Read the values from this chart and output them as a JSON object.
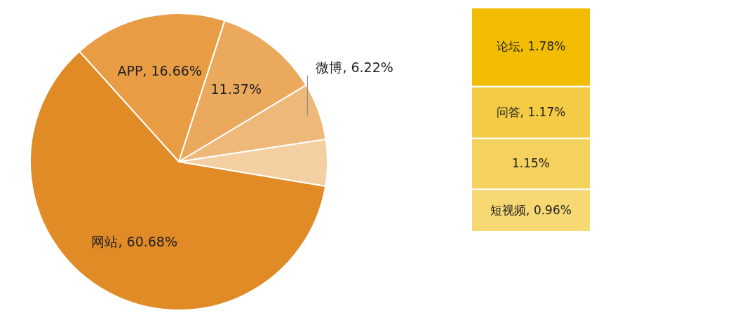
{
  "chart_data": [
    {
      "type": "pie",
      "categories": [
        "APP",
        null,
        "微博",
        null,
        "网站"
      ],
      "values": [
        16.66,
        11.37,
        6.22,
        5.06,
        60.68
      ],
      "colors": [
        "#e89c44",
        "#eaa95c",
        "#edb878",
        "#f3cfa2",
        "#e08b26"
      ],
      "value_labels": [
        "16.66%",
        "11.37%",
        "6.22%",
        null,
        "60.68%"
      ]
    },
    {
      "type": "bar",
      "stacked": true,
      "data_labels": true,
      "categories": [
        null
      ],
      "series": [
        {
          "name": "短视频,",
          "color": "#f7d873",
          "values": [
            0.96
          ],
          "value_labels": [
            "0.96%"
          ]
        },
        {
          "name": null,
          "color": "#f5d25e",
          "values": [
            1.15
          ],
          "value_labels": [
            "1.15%"
          ]
        },
        {
          "name": "问答,",
          "color": "#f5cb45",
          "values": [
            1.17
          ],
          "value_labels": [
            "1.17%"
          ]
        },
        {
          "name": "论坛,",
          "color": "#f2bc00",
          "values": [
            1.78
          ],
          "value_labels": [
            "1.78%"
          ]
        }
      ]
    }
  ]
}
